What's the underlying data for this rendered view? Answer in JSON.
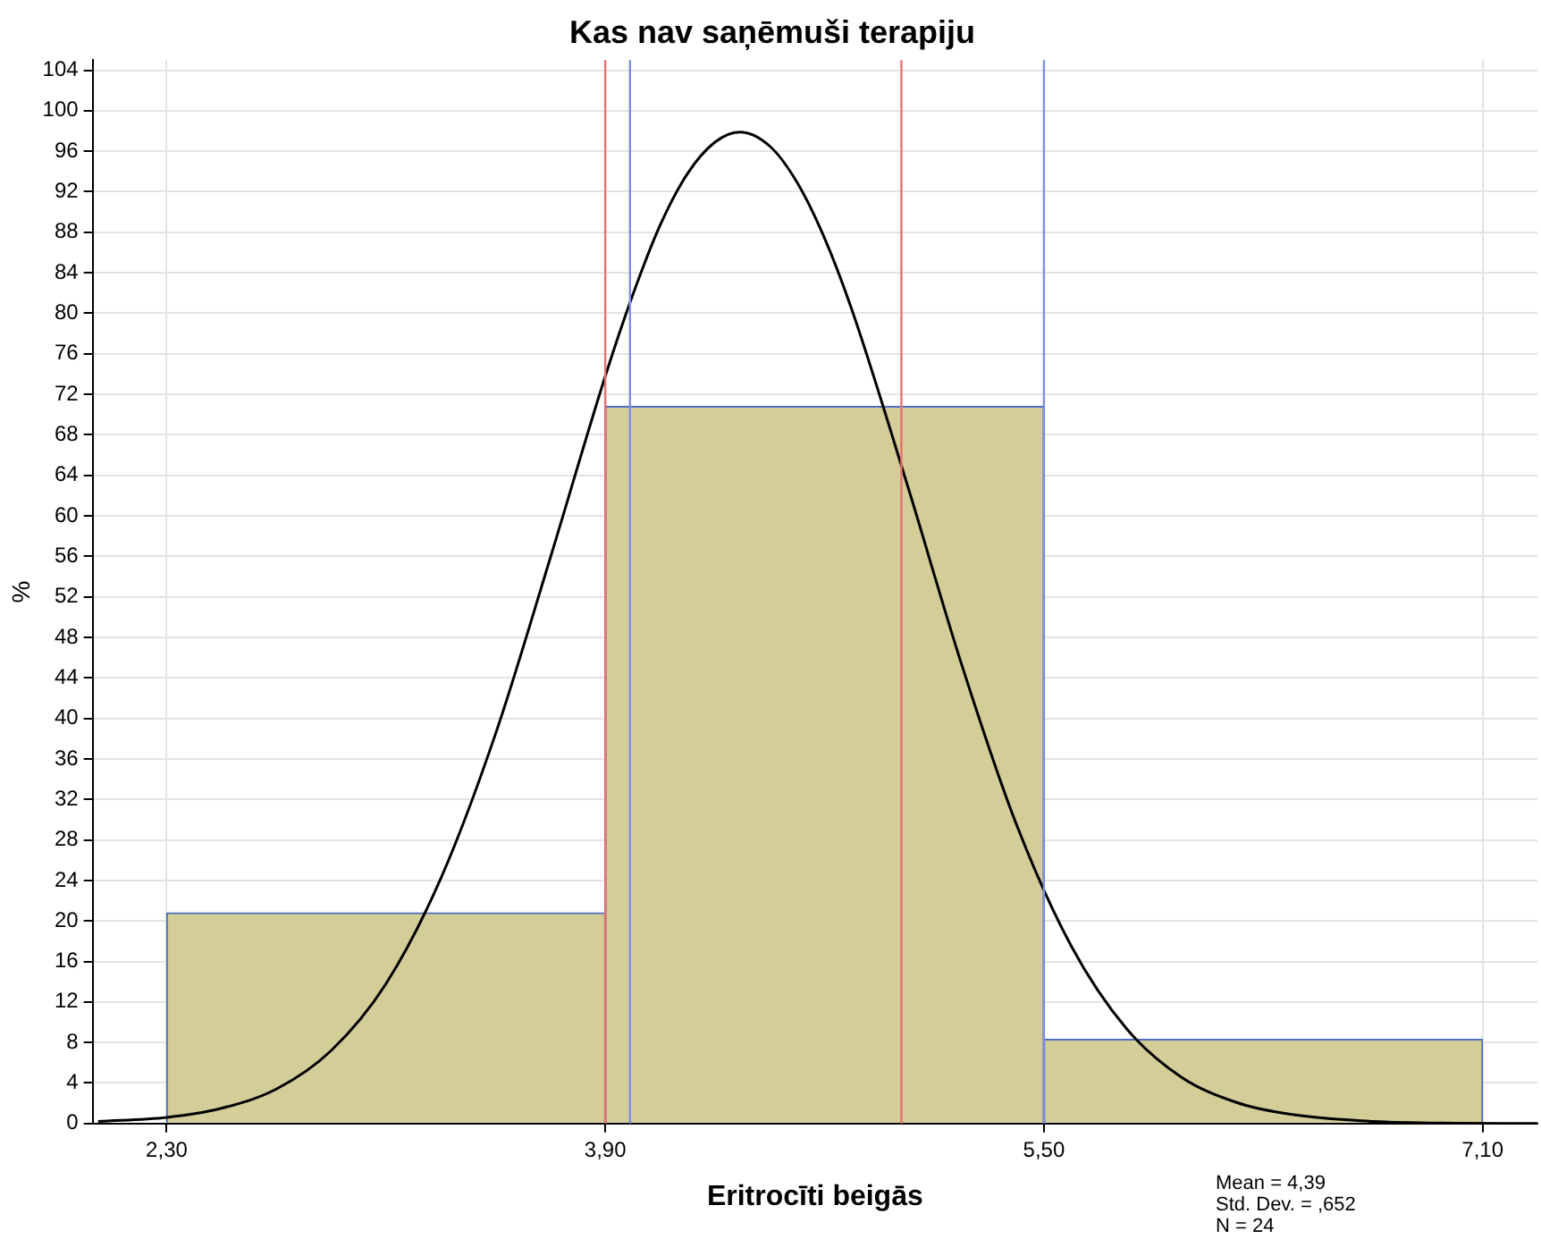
{
  "chart_data": {
    "type": "histogram",
    "title": "Kas nav saņēmuši terapiju",
    "xlabel": "Eritrocīti beigās",
    "ylabel": "%",
    "bins": [
      2.3,
      3.9,
      5.5,
      7.1
    ],
    "values": [
      20.8,
      70.8,
      8.3
    ],
    "color": "#d3cd98",
    "series": [
      {
        "type": "line",
        "color": "#000000",
        "x": [
          2.05,
          2.3,
          2.5,
          2.7,
          2.9,
          3.1,
          3.3,
          3.5,
          3.7,
          3.9,
          4.0,
          4.1,
          4.2,
          4.3,
          4.39,
          4.5,
          4.6,
          4.7,
          4.8,
          5.0,
          5.2,
          5.4,
          5.6,
          5.8,
          6.0,
          6.2,
          6.4,
          6.7,
          7.0,
          7.3
        ],
        "values": [
          0.2,
          0.6,
          1.5,
          3.4,
          7.2,
          13.8,
          24.2,
          38.5,
          55.9,
          73.8,
          81.8,
          88.7,
          93.8,
          96.9,
          97.9,
          96.5,
          92.9,
          87.4,
          80.3,
          63.2,
          45.3,
          29.5,
          17.5,
          9.4,
          4.6,
          2.1,
          0.9,
          0.2,
          0.03,
          0
        ]
      }
    ],
    "xlim": [
      2.03,
      7.3
    ],
    "xticks": [
      {
        "value": 2.3,
        "label": "2,30"
      },
      {
        "value": 3.9,
        "label": "3,90"
      },
      {
        "value": 5.5,
        "label": "5,50"
      },
      {
        "value": 7.1,
        "label": "7,10"
      }
    ],
    "ylim": [
      0,
      105
    ],
    "yticks": [
      0,
      4,
      8,
      12,
      16,
      20,
      24,
      28,
      32,
      36,
      40,
      44,
      48,
      52,
      56,
      60,
      64,
      68,
      72,
      76,
      80,
      84,
      88,
      92,
      96,
      100,
      104
    ],
    "ref_lines": [
      {
        "axis": "x",
        "value": 3.9,
        "color": "#e8706f"
      },
      {
        "axis": "x",
        "value": 4.98,
        "color": "#e8706f"
      },
      {
        "axis": "x",
        "value": 3.99,
        "color": "#7e8ee0"
      },
      {
        "axis": "x",
        "value": 5.5,
        "color": "#7e8ee0"
      }
    ],
    "annotations": [
      "Mean = 4,39",
      "Std. Dev. = ,652",
      "N = 24"
    ],
    "grid": true,
    "legend": false,
    "marker": "none",
    "line_style": "solid"
  }
}
